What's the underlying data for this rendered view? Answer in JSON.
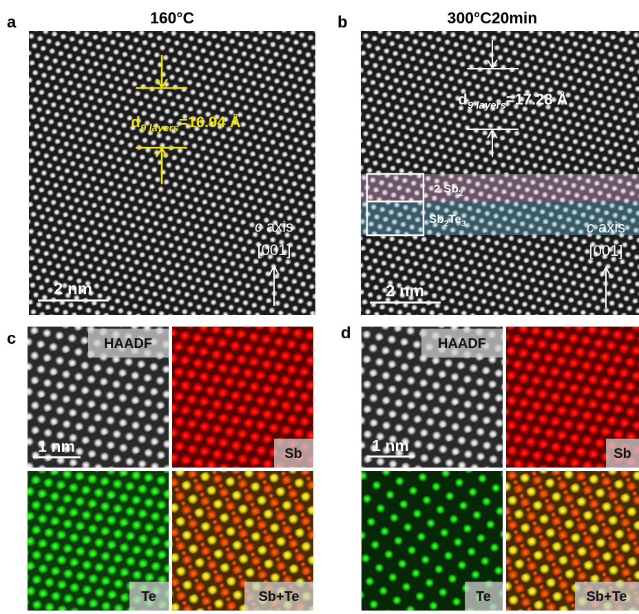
{
  "panels": {
    "a": {
      "label": "a",
      "title": "160°C",
      "spacing": {
        "symbol": "d",
        "subscript": "9 layers",
        "value": "=16.94 Å"
      },
      "axis": {
        "italic": "c",
        "text": " axis",
        "direction": "[001]"
      },
      "scale_bar": "2 nm"
    },
    "b": {
      "label": "b",
      "title": "300°C20min",
      "spacing": {
        "symbol": "d",
        "subscript": "9 layers",
        "value": "=17.28 Å"
      },
      "axis": {
        "italic": "c",
        "text": " axis",
        "direction": "[001]"
      },
      "scale_bar": "2 nm",
      "layers": [
        {
          "parts": [
            "2 Sb",
            "2"
          ]
        },
        {
          "parts": [
            "Sb",
            "2",
            "Te",
            "3"
          ]
        }
      ]
    },
    "c": {
      "label": "c",
      "maps": [
        "HAADF",
        "Sb",
        "Te",
        "Sb+Te"
      ],
      "scale_bar": "1 nm"
    },
    "d": {
      "label": "d",
      "maps": [
        "HAADF",
        "Sb",
        "Te",
        "Sb+Te"
      ],
      "scale_bar": "1 nm"
    }
  }
}
